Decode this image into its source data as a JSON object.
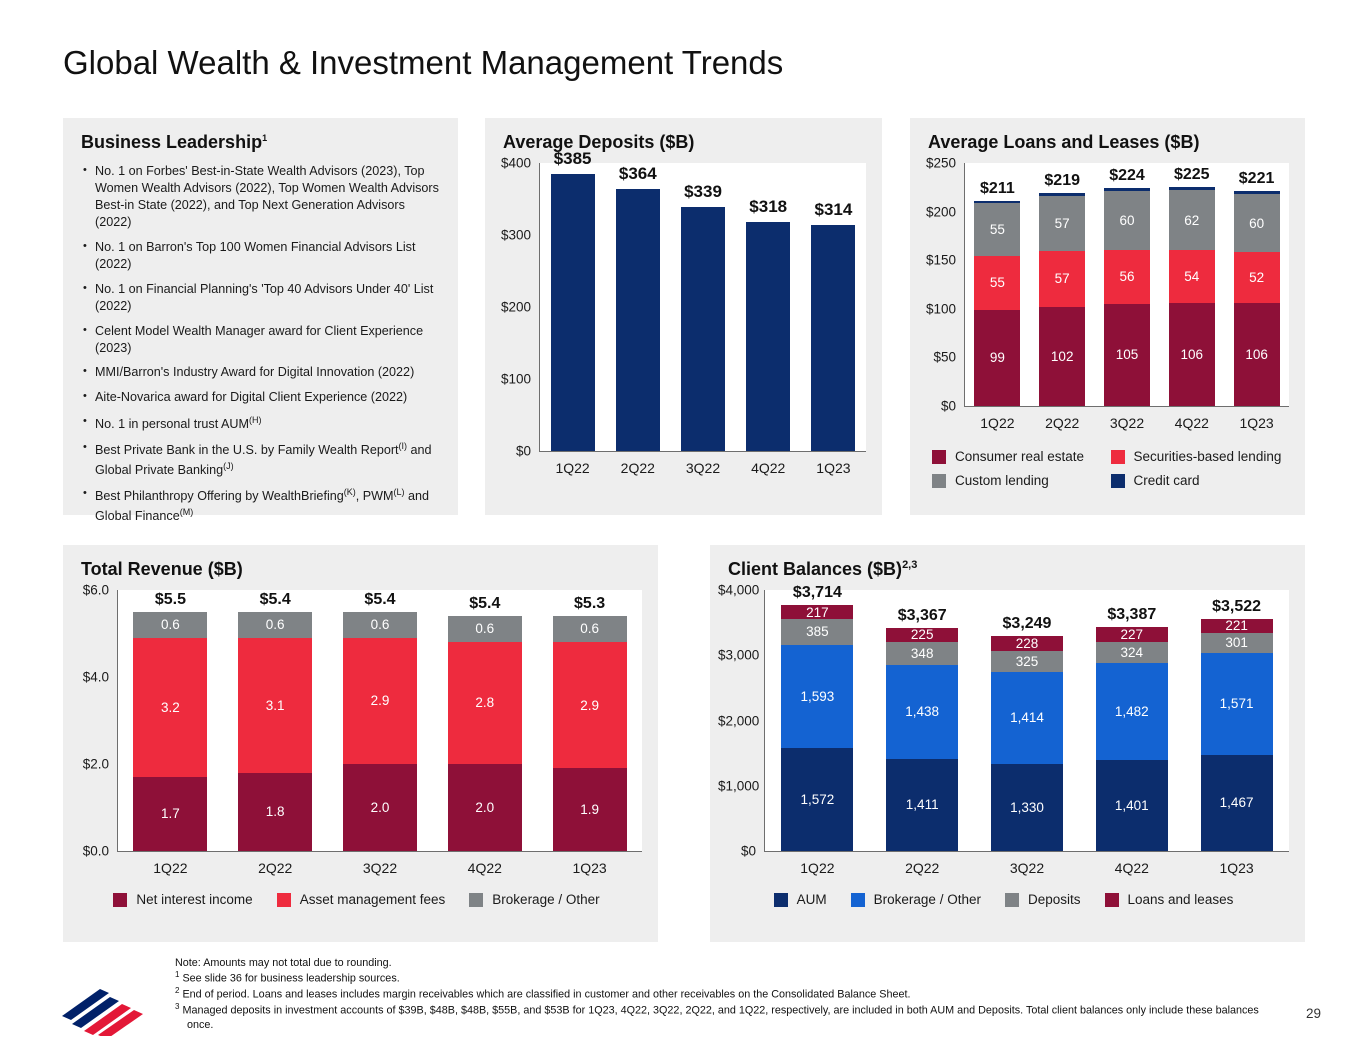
{
  "page": {
    "title": "Global Wealth & Investment Management Trends",
    "page_number": "29"
  },
  "colors": {
    "navy": "#0c2d6d",
    "maroon": "#8e1038",
    "red": "#ee2b3e",
    "gray": "#7f8386",
    "blue": "#1463d2",
    "brand_red": "#e31837",
    "panel_bg": "#eeeeee"
  },
  "business_leadership": {
    "heading": "Business Leadership",
    "heading_sup": "1",
    "bullets": [
      [
        {
          "t": "No. 1 on Forbes' Best-in-State Wealth Advisors (2023), Top Women Wealth Advisors (2022), Top Women Wealth Advisors Best-in State (2022), and Top Next Generation Advisors (2022)"
        }
      ],
      [
        {
          "t": "No. 1 on Barron's Top 100 Women Financial Advisors List (2022)"
        }
      ],
      [
        {
          "t": "No. 1 on Financial Planning's 'Top 40 Advisors Under 40' List (2022)"
        }
      ],
      [
        {
          "t": "Celent Model Wealth Manager award for Client Experience (2023)"
        }
      ],
      [
        {
          "t": "MMI/Barron's Industry Award for Digital Innovation (2022)"
        }
      ],
      [
        {
          "t": "Aite-Novarica award for Digital Client Experience (2022)"
        }
      ],
      [
        {
          "t": "No. 1 in personal trust AUM"
        },
        {
          "sup": "(H)"
        }
      ],
      [
        {
          "t": "Best Private Bank in the U.S. by Family Wealth Report"
        },
        {
          "sup": "(I)"
        },
        {
          "t": " and Global Private Banking"
        },
        {
          "sup": "(J)"
        }
      ],
      [
        {
          "t": "Best Philanthropy Offering by WealthBriefing"
        },
        {
          "sup": "(K)"
        },
        {
          "t": ", PWM"
        },
        {
          "sup": "(L)"
        },
        {
          "t": " and Global Finance"
        },
        {
          "sup": "(M)"
        }
      ]
    ]
  },
  "chart_data": [
    {
      "id": "avg-deposits",
      "type": "bar",
      "title": "Average Deposits ($B)",
      "categories": [
        "1Q22",
        "2Q22",
        "3Q22",
        "4Q22",
        "1Q23"
      ],
      "values": [
        385,
        364,
        339,
        318,
        314
      ],
      "bar_labels": [
        "$385",
        "$364",
        "$339",
        "$318",
        "$314"
      ],
      "bar_color_key": "navy",
      "ylim": [
        0,
        400
      ],
      "yticks": [
        "$400",
        "$300",
        "$200",
        "$100",
        "$0"
      ],
      "grid": false,
      "legend_layout": "none"
    },
    {
      "id": "avg-loans",
      "type": "stacked_bar",
      "title": "Average Loans and Leases ($B)",
      "categories": [
        "1Q22",
        "2Q22",
        "3Q22",
        "4Q22",
        "1Q23"
      ],
      "series": [
        {
          "name": "Consumer real estate",
          "color_key": "maroon",
          "values": [
            99,
            102,
            105,
            106,
            106
          ],
          "labels": [
            "99",
            "102",
            "105",
            "106",
            "106"
          ]
        },
        {
          "name": "Securities-based lending",
          "color_key": "red",
          "values": [
            55,
            57,
            56,
            54,
            52
          ],
          "labels": [
            "55",
            "57",
            "56",
            "54",
            "52"
          ]
        },
        {
          "name": "Custom lending",
          "color_key": "gray",
          "values": [
            55,
            57,
            60,
            62,
            60
          ],
          "labels": [
            "55",
            "57",
            "60",
            "62",
            "60"
          ]
        },
        {
          "name": "Credit card",
          "color_key": "navy",
          "values": [
            2,
            3,
            3,
            3,
            3
          ],
          "labels": [
            "",
            "",
            "",
            "",
            ""
          ]
        }
      ],
      "totals": [
        "$211",
        "$219",
        "$224",
        "$225",
        "$221"
      ],
      "ylim": [
        0,
        250
      ],
      "yticks": [
        "$250",
        "$200",
        "$150",
        "$100",
        "$50",
        "$0"
      ],
      "grid": false,
      "legend_layout": "grid2"
    },
    {
      "id": "total-revenue",
      "type": "stacked_bar",
      "title": "Total Revenue ($B)",
      "categories": [
        "1Q22",
        "2Q22",
        "3Q22",
        "4Q22",
        "1Q23"
      ],
      "series": [
        {
          "name": "Net interest income",
          "color_key": "maroon",
          "values": [
            1.7,
            1.8,
            2.0,
            2.0,
            1.9
          ],
          "labels": [
            "1.7",
            "1.8",
            "2.0",
            "2.0",
            "1.9"
          ]
        },
        {
          "name": "Asset management fees",
          "color_key": "red",
          "values": [
            3.2,
            3.1,
            2.9,
            2.8,
            2.9
          ],
          "labels": [
            "3.2",
            "3.1",
            "2.9",
            "2.8",
            "2.9"
          ]
        },
        {
          "name": "Brokerage / Other",
          "color_key": "gray",
          "values": [
            0.6,
            0.6,
            0.6,
            0.6,
            0.6
          ],
          "labels": [
            "0.6",
            "0.6",
            "0.6",
            "0.6",
            "0.6"
          ]
        }
      ],
      "totals": [
        "$5.5",
        "$5.4",
        "$5.4",
        "$5.4",
        "$5.3"
      ],
      "ylim": [
        0,
        6
      ],
      "yticks": [
        "$6.0",
        "$4.0",
        "$2.0",
        "$0.0"
      ],
      "grid": false,
      "legend_layout": "row"
    },
    {
      "id": "client-balances",
      "type": "stacked_bar",
      "title": "Client Balances ($B)",
      "title_sup": "2,3",
      "categories": [
        "1Q22",
        "2Q22",
        "3Q22",
        "4Q22",
        "1Q23"
      ],
      "series": [
        {
          "name": "AUM",
          "color_key": "navy",
          "values": [
            1572,
            1411,
            1330,
            1401,
            1467
          ],
          "labels": [
            "1,572",
            "1,411",
            "1,330",
            "1,401",
            "1,467"
          ]
        },
        {
          "name": "Brokerage / Other",
          "color_key": "blue",
          "values": [
            1593,
            1438,
            1414,
            1482,
            1571
          ],
          "labels": [
            "1,593",
            "1,438",
            "1,414",
            "1,482",
            "1,571"
          ]
        },
        {
          "name": "Deposits",
          "color_key": "gray",
          "values": [
            385,
            348,
            325,
            324,
            301
          ],
          "labels": [
            "385",
            "348",
            "325",
            "324",
            "301"
          ]
        },
        {
          "name": "Loans and leases",
          "color_key": "maroon",
          "values": [
            217,
            225,
            228,
            227,
            221
          ],
          "labels": [
            "217",
            "225",
            "228",
            "227",
            "221"
          ]
        }
      ],
      "totals": [
        "$3,714",
        "$3,367",
        "$3,249",
        "$3,387",
        "$3,522"
      ],
      "ylim": [
        0,
        4000
      ],
      "yticks": [
        "$4,000",
        "$3,000",
        "$2,000",
        "$1,000",
        "$0"
      ],
      "grid": false,
      "legend_layout": "row"
    }
  ],
  "footnotes": {
    "note": "Note: Amounts may not total due to rounding.",
    "items": [
      {
        "sup": "1",
        "t": "See slide 36 for business leadership sources."
      },
      {
        "sup": "2",
        "t": "End of period. Loans and leases includes margin receivables which are classified in customer and other receivables on the Consolidated Balance Sheet."
      },
      {
        "sup": "3",
        "t": "Managed deposits in investment accounts of $39B, $48B, $48B, $55B, and $53B for 1Q23, 4Q22, 3Q22, 2Q22, and 1Q22, respectively, are included in both AUM and Deposits. Total client balances only include these balances once."
      }
    ]
  }
}
